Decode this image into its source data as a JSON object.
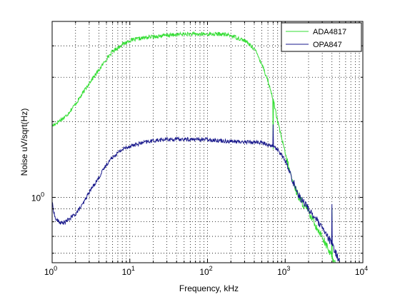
{
  "chart_data": {
    "type": "line",
    "title": "",
    "xlabel": "Frequency, kHz",
    "ylabel": "Noise uV/sqrt(Hz)",
    "xscale": "log",
    "yscale": "log",
    "xlim": [
      1,
      10000
    ],
    "ylim": [
      0.55,
      5.0
    ],
    "grid": true,
    "legend_position": "top-right",
    "x_ticks": [
      {
        "value": 1,
        "base": "10",
        "exp": "0"
      },
      {
        "value": 10,
        "base": "10",
        "exp": "1"
      },
      {
        "value": 100,
        "base": "10",
        "exp": "2"
      },
      {
        "value": 1000,
        "base": "10",
        "exp": "3"
      },
      {
        "value": 10000,
        "base": "10",
        "exp": "4"
      }
    ],
    "y_ticks": [
      {
        "value": 1,
        "base": "10",
        "exp": "0"
      }
    ],
    "series": [
      {
        "name": "ADA4817",
        "color": "#33dd33",
        "x": [
          1,
          1.2,
          1.5,
          2,
          2.5,
          3,
          4,
          5,
          6,
          8,
          10,
          15,
          20,
          30,
          50,
          70,
          100,
          150,
          200,
          300,
          400,
          500,
          600,
          700,
          800,
          1000,
          1200,
          1500,
          2000,
          2500,
          3000,
          3500,
          4000,
          4500,
          5000
        ],
        "values": [
          1.92,
          2.0,
          2.1,
          2.35,
          2.6,
          2.85,
          3.2,
          3.55,
          3.8,
          4.05,
          4.2,
          4.3,
          4.35,
          4.4,
          4.45,
          4.45,
          4.45,
          4.45,
          4.4,
          4.2,
          3.9,
          3.4,
          2.9,
          2.45,
          2.0,
          1.5,
          1.2,
          1.0,
          0.87,
          0.77,
          0.7,
          0.63,
          0.58,
          0.55,
          0.5
        ]
      },
      {
        "name": "OPA847",
        "color": "#1a1a8c",
        "x": [
          1,
          1.1,
          1.3,
          1.5,
          2,
          2.5,
          3,
          4,
          5,
          6,
          8,
          10,
          15,
          20,
          30,
          50,
          70,
          100,
          150,
          200,
          300,
          400,
          500,
          600,
          700,
          800,
          1000,
          1200,
          1500,
          2000,
          2500,
          3000,
          3500,
          4000,
          4500,
          5000
        ],
        "values": [
          0.95,
          0.82,
          0.79,
          0.8,
          0.86,
          0.94,
          1.05,
          1.2,
          1.35,
          1.45,
          1.55,
          1.6,
          1.65,
          1.68,
          1.7,
          1.7,
          1.7,
          1.7,
          1.68,
          1.67,
          1.66,
          1.66,
          1.65,
          1.62,
          1.6,
          1.55,
          1.4,
          1.2,
          1.02,
          0.9,
          0.82,
          0.75,
          0.7,
          0.65,
          0.6,
          0.56
        ]
      }
    ],
    "spikes": [
      {
        "series": "ADA4817",
        "x": 700,
        "y": 1.55
      },
      {
        "series": "OPA847",
        "x": 700,
        "y": 1.95
      },
      {
        "series": "ADA4817",
        "x": 4000,
        "y": 0.9
      },
      {
        "series": "OPA847",
        "x": 4000,
        "y": 0.94
      }
    ]
  }
}
